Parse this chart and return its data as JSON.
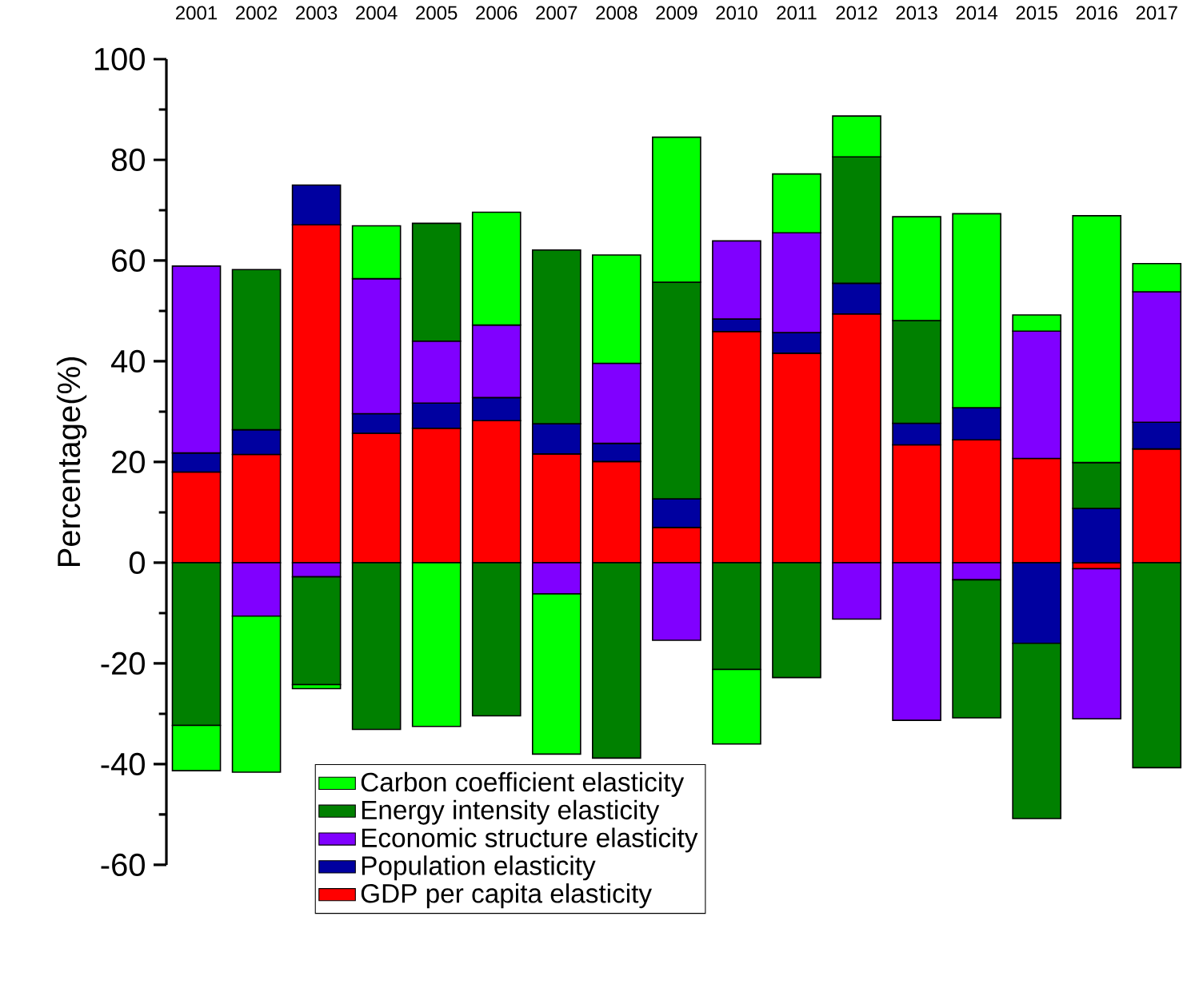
{
  "chart_data": {
    "type": "bar",
    "stacked": true,
    "ylabel": "Percentage(%)",
    "categories": [
      "2001",
      "2002",
      "2003",
      "2004",
      "2005",
      "2006",
      "2007",
      "2008",
      "2009",
      "2010",
      "2011",
      "2012",
      "2013",
      "2014",
      "2015",
      "2016",
      "2017"
    ],
    "series": [
      {
        "name": "GDP per capita elasticity",
        "color": "#ff0000",
        "values": [
          18.0,
          21.5,
          67.1,
          25.7,
          26.7,
          28.2,
          21.6,
          20.1,
          7.0,
          45.9,
          41.6,
          49.4,
          23.4,
          24.4,
          20.7,
          -1.2,
          22.6
        ]
      },
      {
        "name": "Population  elasticity",
        "color": "#0000a0",
        "values": [
          3.8,
          4.9,
          7.9,
          3.9,
          5.0,
          4.6,
          6.0,
          3.6,
          5.7,
          2.5,
          4.1,
          6.1,
          4.3,
          6.4,
          -16.0,
          10.8,
          5.3
        ]
      },
      {
        "name": "Economic structure  elasticity",
        "color": "#8000ff",
        "values": [
          37.1,
          -10.6,
          -2.8,
          26.8,
          12.3,
          14.4,
          -6.2,
          15.9,
          -15.4,
          15.5,
          19.8,
          -11.2,
          -31.3,
          -3.4,
          25.3,
          -29.8,
          25.9
        ]
      },
      {
        "name": "Energy intensity  elasticity",
        "color": "#008000",
        "values": [
          -32.3,
          31.8,
          -21.4,
          -33.1,
          23.4,
          -30.4,
          34.5,
          -38.8,
          43.0,
          -21.2,
          -22.8,
          25.1,
          20.4,
          -27.4,
          -34.8,
          9.1,
          -40.7
        ]
      },
      {
        "name": "Carbon coefficient  elasticity",
        "color": "#00ff00",
        "values": [
          -9.0,
          -31.0,
          -0.8,
          10.5,
          -32.5,
          22.4,
          -31.8,
          21.5,
          28.8,
          -14.8,
          11.7,
          8.1,
          20.6,
          38.5,
          3.2,
          49.0,
          5.6
        ]
      }
    ],
    "ylim": [
      -60,
      100
    ],
    "yticks": [
      -60,
      -40,
      -20,
      0,
      20,
      40,
      60,
      80,
      100
    ],
    "legend": "bottom"
  }
}
